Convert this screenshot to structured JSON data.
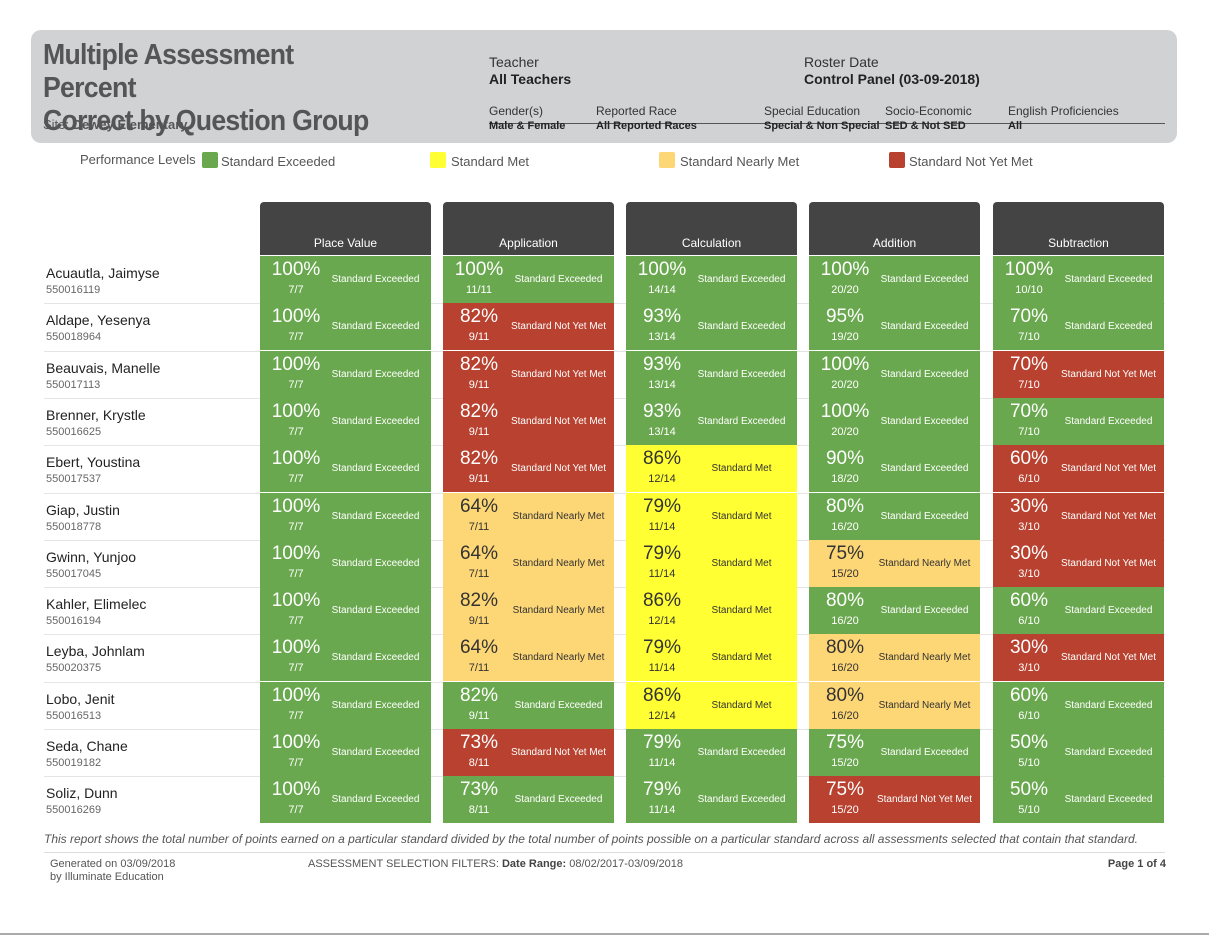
{
  "header": {
    "title_line1": "Multiple Assessment Percent",
    "title_line2": "Correct by Question Group",
    "site_label": "Site:",
    "site_value": "Dewey Elementary",
    "teacher_label": "Teacher",
    "teacher_value": "All Teachers",
    "roster_label": "Roster Date",
    "roster_value": "Control Panel (03-09-2018)",
    "filters": [
      {
        "label": "Gender(s)",
        "value": "Male & Female"
      },
      {
        "label": "Reported Race",
        "value": "All Reported Races"
      },
      {
        "label": "Special Education",
        "value": "Special & Non Special"
      },
      {
        "label": "Socio-Economic",
        "value": "SED & Not SED"
      },
      {
        "label": "English Proficiencies",
        "value": "All"
      }
    ]
  },
  "legend": {
    "title": "Performance Levels",
    "items": [
      {
        "label": "Standard Exceeded",
        "color": "#6aa84f"
      },
      {
        "label": "Standard Met",
        "color": "#ffff33"
      },
      {
        "label": "Standard Nearly Met",
        "color": "#fdd676"
      },
      {
        "label": "Standard Not Yet Met",
        "color": "#b8412f"
      }
    ]
  },
  "columns": [
    "Place Value",
    "Application",
    "Calculation",
    "Addition",
    "Subtraction"
  ],
  "colors": {
    "exceeded": "#6aa84f",
    "met": "#ffff33",
    "nearly": "#fdd676",
    "notyet": "#b8412f"
  },
  "students": [
    {
      "name": "Acuautla, Jaimyse",
      "id": "550016119",
      "cells": [
        {
          "pct": "100%",
          "frac": "7/7",
          "level": "Standard Exceeded",
          "code": "exceeded"
        },
        {
          "pct": "100%",
          "frac": "11/11",
          "level": "Standard Exceeded",
          "code": "exceeded"
        },
        {
          "pct": "100%",
          "frac": "14/14",
          "level": "Standard Exceeded",
          "code": "exceeded"
        },
        {
          "pct": "100%",
          "frac": "20/20",
          "level": "Standard Exceeded",
          "code": "exceeded"
        },
        {
          "pct": "100%",
          "frac": "10/10",
          "level": "Standard Exceeded",
          "code": "exceeded"
        }
      ]
    },
    {
      "name": "Aldape, Yesenya",
      "id": "550018964",
      "cells": [
        {
          "pct": "100%",
          "frac": "7/7",
          "level": "Standard Exceeded",
          "code": "exceeded"
        },
        {
          "pct": "82%",
          "frac": "9/11",
          "level": "Standard Not Yet Met",
          "code": "notyet"
        },
        {
          "pct": "93%",
          "frac": "13/14",
          "level": "Standard Exceeded",
          "code": "exceeded"
        },
        {
          "pct": "95%",
          "frac": "19/20",
          "level": "Standard Exceeded",
          "code": "exceeded"
        },
        {
          "pct": "70%",
          "frac": "7/10",
          "level": "Standard Exceeded",
          "code": "exceeded"
        }
      ]
    },
    {
      "name": "Beauvais, Manelle",
      "id": "550017113",
      "cells": [
        {
          "pct": "100%",
          "frac": "7/7",
          "level": "Standard Exceeded",
          "code": "exceeded"
        },
        {
          "pct": "82%",
          "frac": "9/11",
          "level": "Standard Not Yet Met",
          "code": "notyet"
        },
        {
          "pct": "93%",
          "frac": "13/14",
          "level": "Standard Exceeded",
          "code": "exceeded"
        },
        {
          "pct": "100%",
          "frac": "20/20",
          "level": "Standard Exceeded",
          "code": "exceeded"
        },
        {
          "pct": "70%",
          "frac": "7/10",
          "level": "Standard Not Yet Met",
          "code": "notyet"
        }
      ]
    },
    {
      "name": "Brenner, Krystle",
      "id": "550016625",
      "cells": [
        {
          "pct": "100%",
          "frac": "7/7",
          "level": "Standard Exceeded",
          "code": "exceeded"
        },
        {
          "pct": "82%",
          "frac": "9/11",
          "level": "Standard Not Yet Met",
          "code": "notyet"
        },
        {
          "pct": "93%",
          "frac": "13/14",
          "level": "Standard Exceeded",
          "code": "exceeded"
        },
        {
          "pct": "100%",
          "frac": "20/20",
          "level": "Standard Exceeded",
          "code": "exceeded"
        },
        {
          "pct": "70%",
          "frac": "7/10",
          "level": "Standard Exceeded",
          "code": "exceeded"
        }
      ]
    },
    {
      "name": "Ebert, Youstina",
      "id": "550017537",
      "cells": [
        {
          "pct": "100%",
          "frac": "7/7",
          "level": "Standard Exceeded",
          "code": "exceeded"
        },
        {
          "pct": "82%",
          "frac": "9/11",
          "level": "Standard Not Yet Met",
          "code": "notyet"
        },
        {
          "pct": "86%",
          "frac": "12/14",
          "level": "Standard Met",
          "code": "met"
        },
        {
          "pct": "90%",
          "frac": "18/20",
          "level": "Standard Exceeded",
          "code": "exceeded"
        },
        {
          "pct": "60%",
          "frac": "6/10",
          "level": "Standard Not Yet Met",
          "code": "notyet"
        }
      ]
    },
    {
      "name": "Giap, Justin",
      "id": "550018778",
      "cells": [
        {
          "pct": "100%",
          "frac": "7/7",
          "level": "Standard Exceeded",
          "code": "exceeded"
        },
        {
          "pct": "64%",
          "frac": "7/11",
          "level": "Standard Nearly Met",
          "code": "nearly"
        },
        {
          "pct": "79%",
          "frac": "11/14",
          "level": "Standard Met",
          "code": "met"
        },
        {
          "pct": "80%",
          "frac": "16/20",
          "level": "Standard Exceeded",
          "code": "exceeded"
        },
        {
          "pct": "30%",
          "frac": "3/10",
          "level": "Standard Not Yet Met",
          "code": "notyet"
        }
      ]
    },
    {
      "name": "Gwinn, Yunjoo",
      "id": "550017045",
      "cells": [
        {
          "pct": "100%",
          "frac": "7/7",
          "level": "Standard Exceeded",
          "code": "exceeded"
        },
        {
          "pct": "64%",
          "frac": "7/11",
          "level": "Standard Nearly Met",
          "code": "nearly"
        },
        {
          "pct": "79%",
          "frac": "11/14",
          "level": "Standard Met",
          "code": "met"
        },
        {
          "pct": "75%",
          "frac": "15/20",
          "level": "Standard Nearly Met",
          "code": "nearly"
        },
        {
          "pct": "30%",
          "frac": "3/10",
          "level": "Standard Not Yet Met",
          "code": "notyet"
        }
      ]
    },
    {
      "name": "Kahler, Elimelec",
      "id": "550016194",
      "cells": [
        {
          "pct": "100%",
          "frac": "7/7",
          "level": "Standard Exceeded",
          "code": "exceeded"
        },
        {
          "pct": "82%",
          "frac": "9/11",
          "level": "Standard Nearly Met",
          "code": "nearly"
        },
        {
          "pct": "86%",
          "frac": "12/14",
          "level": "Standard Met",
          "code": "met"
        },
        {
          "pct": "80%",
          "frac": "16/20",
          "level": "Standard Exceeded",
          "code": "exceeded"
        },
        {
          "pct": "60%",
          "frac": "6/10",
          "level": "Standard Exceeded",
          "code": "exceeded"
        }
      ]
    },
    {
      "name": "Leyba, Johnlam",
      "id": "550020375",
      "cells": [
        {
          "pct": "100%",
          "frac": "7/7",
          "level": "Standard Exceeded",
          "code": "exceeded"
        },
        {
          "pct": "64%",
          "frac": "7/11",
          "level": "Standard Nearly Met",
          "code": "nearly"
        },
        {
          "pct": "79%",
          "frac": "11/14",
          "level": "Standard Met",
          "code": "met"
        },
        {
          "pct": "80%",
          "frac": "16/20",
          "level": "Standard Nearly Met",
          "code": "nearly"
        },
        {
          "pct": "30%",
          "frac": "3/10",
          "level": "Standard Not Yet Met",
          "code": "notyet"
        }
      ]
    },
    {
      "name": "Lobo, Jenit",
      "id": "550016513",
      "cells": [
        {
          "pct": "100%",
          "frac": "7/7",
          "level": "Standard Exceeded",
          "code": "exceeded"
        },
        {
          "pct": "82%",
          "frac": "9/11",
          "level": "Standard Exceeded",
          "code": "exceeded"
        },
        {
          "pct": "86%",
          "frac": "12/14",
          "level": "Standard Met",
          "code": "met"
        },
        {
          "pct": "80%",
          "frac": "16/20",
          "level": "Standard Nearly Met",
          "code": "nearly"
        },
        {
          "pct": "60%",
          "frac": "6/10",
          "level": "Standard Exceeded",
          "code": "exceeded"
        }
      ]
    },
    {
      "name": "Seda, Chane",
      "id": "550019182",
      "cells": [
        {
          "pct": "100%",
          "frac": "7/7",
          "level": "Standard Exceeded",
          "code": "exceeded"
        },
        {
          "pct": "73%",
          "frac": "8/11",
          "level": "Standard Not Yet Met",
          "code": "notyet"
        },
        {
          "pct": "79%",
          "frac": "11/14",
          "level": "Standard Exceeded",
          "code": "exceeded"
        },
        {
          "pct": "75%",
          "frac": "15/20",
          "level": "Standard Exceeded",
          "code": "exceeded"
        },
        {
          "pct": "50%",
          "frac": "5/10",
          "level": "Standard Exceeded",
          "code": "exceeded"
        }
      ]
    },
    {
      "name": "Soliz, Dunn",
      "id": "550016269",
      "cells": [
        {
          "pct": "100%",
          "frac": "7/7",
          "level": "Standard Exceeded",
          "code": "exceeded"
        },
        {
          "pct": "73%",
          "frac": "8/11",
          "level": "Standard Exceeded",
          "code": "exceeded"
        },
        {
          "pct": "79%",
          "frac": "11/14",
          "level": "Standard Exceeded",
          "code": "exceeded"
        },
        {
          "pct": "75%",
          "frac": "15/20",
          "level": "Standard Not Yet Met",
          "code": "notyet"
        },
        {
          "pct": "50%",
          "frac": "5/10",
          "level": "Standard Exceeded",
          "code": "exceeded"
        }
      ]
    }
  ],
  "footer": {
    "note": "This report shows the total number of points earned on a particular standard divided by the total number of points possible on a particular standard across all assessments selected that contain that standard.",
    "generated_line1": "Generated on 03/09/2018",
    "generated_line2": "by Illuminate Education",
    "filters_prefix": "ASSESSMENT SELECTION FILTERS:",
    "date_range_label": "Date Range:",
    "date_range_value": "08/02/2017-03/09/2018",
    "page": "Page 1 of 4"
  }
}
